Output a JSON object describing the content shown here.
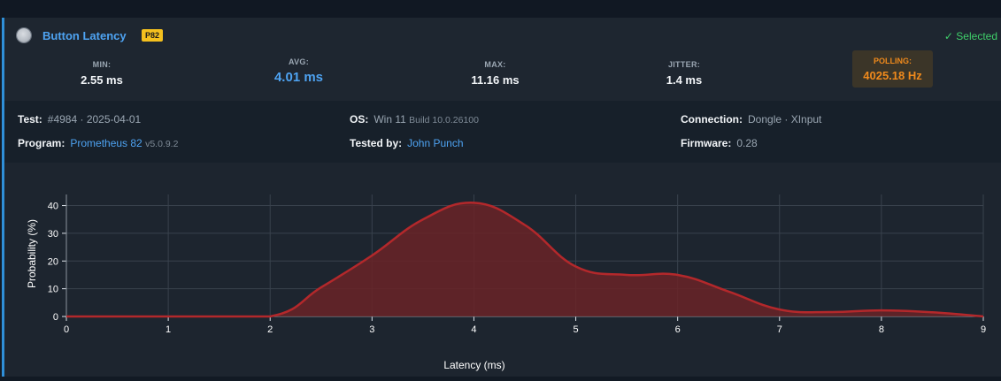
{
  "title": "Button Latency",
  "badge": "P82",
  "selected": "✓ Selected",
  "stats": {
    "min": {
      "label": "MIN:",
      "value": "2.55 ms"
    },
    "avg": {
      "label": "AVG:",
      "value": "4.01 ms"
    },
    "max": {
      "label": "MAX:",
      "value": "11.16 ms"
    },
    "jitter": {
      "label": "JITTER:",
      "value": "1.4 ms"
    },
    "polling": {
      "label": "POLLING:",
      "value": "4025.18 Hz"
    }
  },
  "info": {
    "test": {
      "label": "Test:",
      "value": "#4984 · 2025-04-01"
    },
    "program": {
      "label": "Program:",
      "value": "Prometheus 82",
      "version": "v5.0.9.2"
    },
    "os": {
      "label": "OS:",
      "value": "Win 11",
      "build": "Build 10.0.26100"
    },
    "tested_by": {
      "label": "Tested by:",
      "value": "John Punch"
    },
    "connection": {
      "label": "Connection:",
      "value": "Dongle · XInput"
    },
    "firmware": {
      "label": "Firmware:",
      "value": "0.28"
    }
  },
  "colors": {
    "accent": "#4ea3f2",
    "selected": "#3fcf6a",
    "polling": "#f08a1c",
    "series": "#b3282b"
  },
  "chart_data": {
    "type": "area",
    "xlabel": "Latency (ms)",
    "ylabel": "Probability (%)",
    "xlim": [
      0,
      9
    ],
    "ylim": [
      0,
      44
    ],
    "xticks": [
      0,
      1,
      2,
      3,
      4,
      5,
      6,
      7,
      8,
      9
    ],
    "yticks": [
      0,
      10,
      20,
      30,
      40
    ],
    "grid": true,
    "x": [
      0,
      1,
      2,
      2.5,
      3,
      3.5,
      4,
      4.5,
      5,
      5.5,
      6,
      6.5,
      7,
      7.5,
      8,
      8.5,
      9
    ],
    "y": [
      0,
      0,
      0,
      10.5,
      22,
      35,
      41,
      33,
      18,
      15,
      15,
      9,
      2.5,
      1.6,
      2.2,
      1.5,
      0
    ]
  }
}
